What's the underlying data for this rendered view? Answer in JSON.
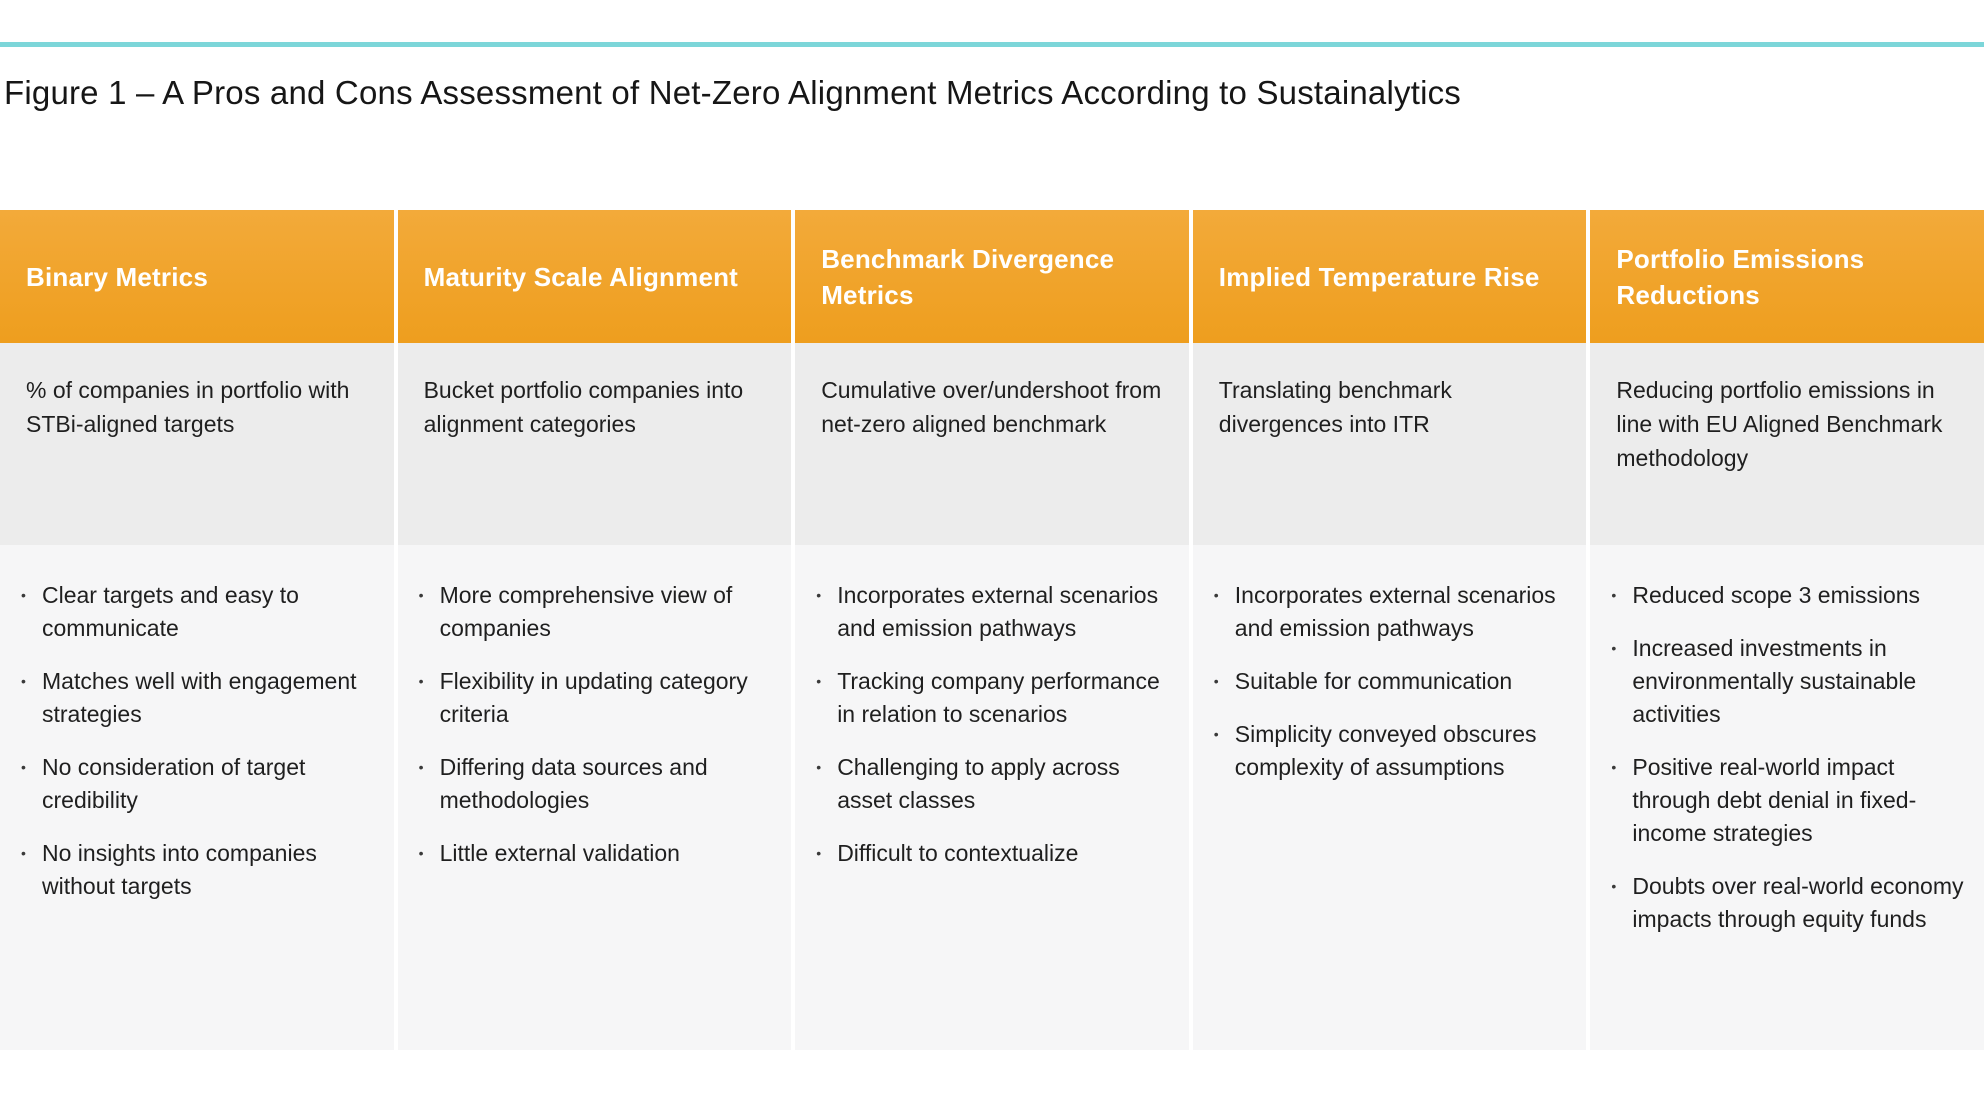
{
  "figure": {
    "title": "Figure 1 – A Pros and Cons Assessment of Net-Zero Alignment Metrics According to Sustainalytics"
  },
  "colors": {
    "accent_rule_teal": "#7CD6D9",
    "header_orange_top": "#F3AA3A",
    "header_orange_bottom": "#EE9E1E",
    "header_text": "#FFFFFF",
    "description_row_bg": "#ECECEC",
    "bullets_row_bg": "#F6F6F7",
    "body_text": "#1F1F1F"
  },
  "table": {
    "bullet_char": "•",
    "columns": [
      {
        "header": "Binary Metrics",
        "description": "% of companies in portfolio with STBi-aligned targets",
        "bullets": [
          "Clear targets and easy to communicate",
          "Matches well with engagement strategies",
          "No consideration of target credibility",
          "No insights into companies without targets"
        ]
      },
      {
        "header": "Maturity Scale Alignment",
        "description": "Bucket portfolio companies into alignment categories",
        "bullets": [
          "More comprehensive view of companies",
          "Flexibility in updating category criteria",
          "Differing data sources and methodologies",
          "Little external validation"
        ]
      },
      {
        "header": "Benchmark Divergence Metrics",
        "description": "Cumulative over/undershoot from net-zero aligned benchmark",
        "bullets": [
          "Incorporates external scenarios and emission pathways",
          "Tracking company performance in relation to scenarios",
          "Challenging to apply across asset classes",
          "Difficult to contextualize"
        ]
      },
      {
        "header": "Implied Temperature Rise",
        "description": "Translating benchmark divergences into ITR",
        "bullets": [
          "Incorporates external scenarios and emission pathways",
          "Suitable for communication",
          "Simplicity conveyed obscures complexity of assumptions"
        ]
      },
      {
        "header": "Portfolio Emissions Reductions",
        "description": "Reducing portfolio emissions in line with EU Aligned Benchmark methodology",
        "bullets": [
          "Reduced scope 3 emissions",
          "Increased investments in environmentally sustainable activities",
          "Positive real-world impact through debt denial in fixed-income strategies",
          "Doubts over real-world economy impacts through equity funds"
        ]
      }
    ]
  }
}
